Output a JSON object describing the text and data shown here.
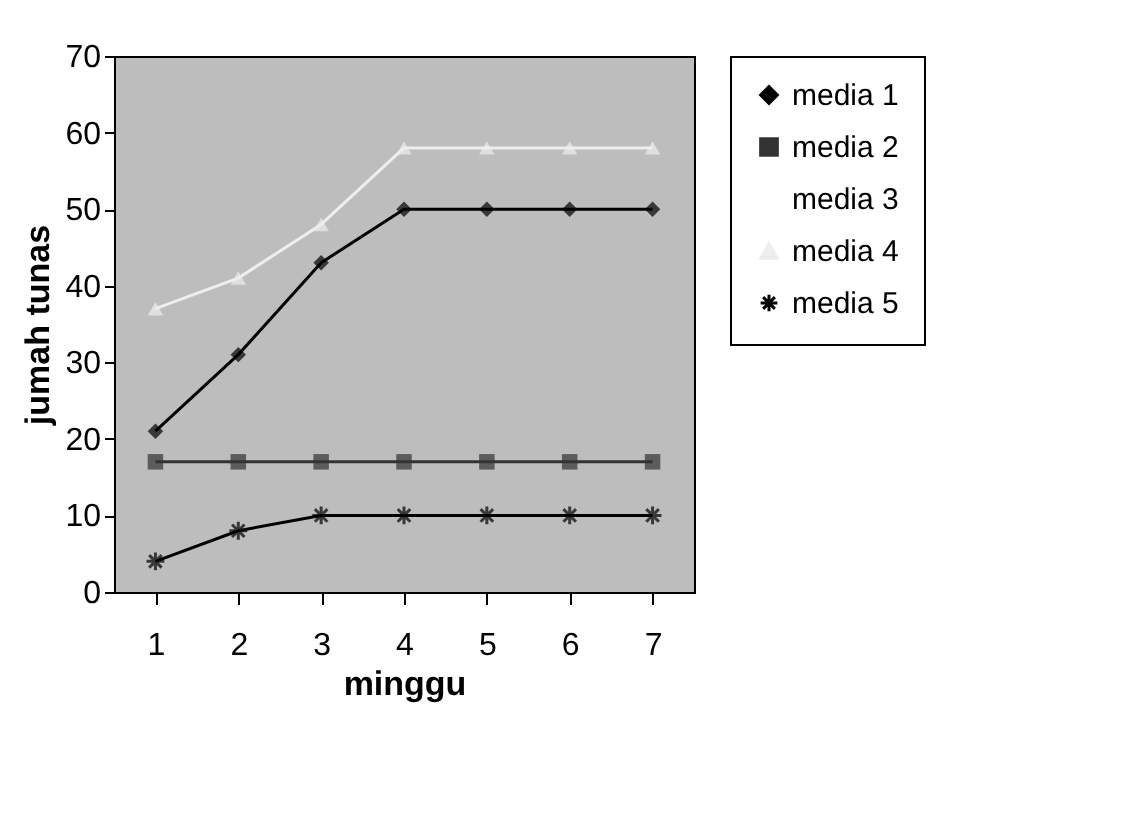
{
  "chart_data": {
    "type": "line",
    "xlabel": "minggu",
    "ylabel": "jumah tunas",
    "categories": [
      "1",
      "2",
      "3",
      "4",
      "5",
      "6",
      "7"
    ],
    "ylim": [
      0,
      70
    ],
    "yticks": [
      0,
      10,
      20,
      30,
      40,
      50,
      60,
      70
    ],
    "grid": false,
    "legend": "right",
    "series": [
      {
        "name": "media 1",
        "color": "#000000",
        "marker": "diamond",
        "values": [
          21,
          31,
          43,
          50,
          50,
          50,
          50
        ]
      },
      {
        "name": "media 2",
        "color": "#333333",
        "marker": "square",
        "values": [
          17,
          17,
          17,
          17,
          17,
          17,
          17
        ]
      },
      {
        "name": "media 3",
        "marker": "none",
        "values": [
          null,
          null,
          null,
          null,
          null,
          null,
          null
        ]
      },
      {
        "name": "media 4",
        "color": "#eeeeee",
        "marker": "triangle",
        "values": [
          37,
          41,
          48,
          58,
          58,
          58,
          58
        ]
      },
      {
        "name": "media 5",
        "color": "#000000",
        "marker": "cross",
        "values": [
          4,
          8,
          10,
          10,
          10,
          10,
          10
        ]
      }
    ]
  }
}
